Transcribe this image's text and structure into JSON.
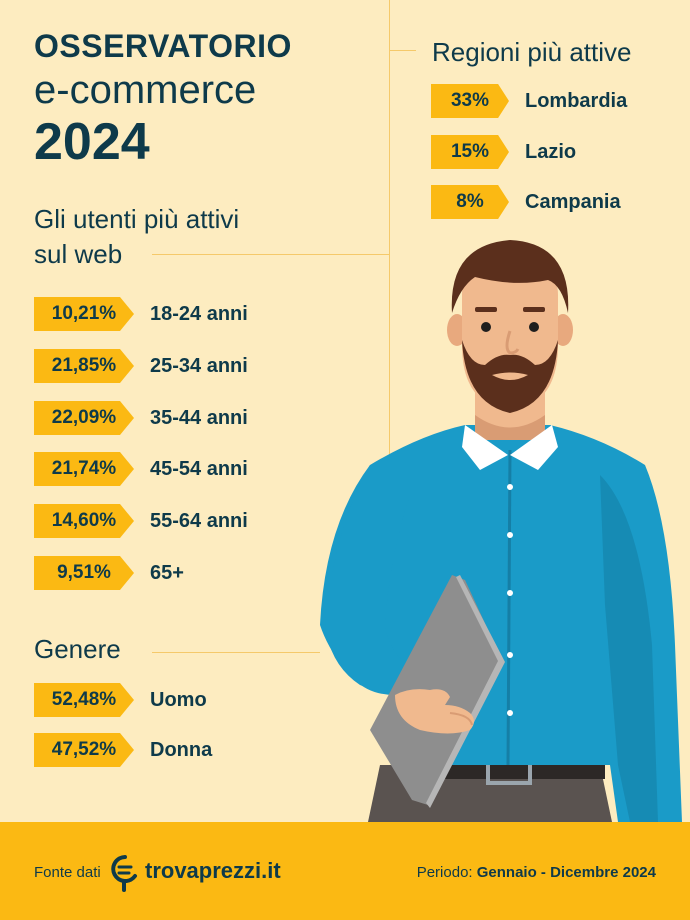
{
  "title": {
    "line1": "OSSERVATORIO",
    "line2": "e-commerce",
    "line3": "2024"
  },
  "regions": {
    "heading": "Regioni più attive",
    "items": [
      {
        "pct": "33%",
        "name": "Lombardia"
      },
      {
        "pct": "15%",
        "name": "Lazio"
      },
      {
        "pct": "8%",
        "name": "Campania"
      }
    ]
  },
  "ages": {
    "heading_line1": "Gli utenti più attivi",
    "heading_line2": "sul web",
    "items": [
      {
        "pct": "10,21%",
        "label": "18-24 anni"
      },
      {
        "pct": "21,85%",
        "label": "25-34 anni"
      },
      {
        "pct": "22,09%",
        "label": "35-44 anni"
      },
      {
        "pct": "21,74%",
        "label": "45-54 anni"
      },
      {
        "pct": "14,60%",
        "label": "55-64 anni"
      },
      {
        "pct": "9,51%",
        "label": "65+"
      }
    ]
  },
  "gender": {
    "heading": "Genere",
    "items": [
      {
        "pct": "52,48%",
        "label": "Uomo"
      },
      {
        "pct": "47,52%",
        "label": "Donna"
      }
    ]
  },
  "footer": {
    "source_label": "Fonte dati",
    "brand": "trovaprezzi.it",
    "period_label": "Periodo:",
    "period_value": "Gennaio - Dicembre 2024"
  },
  "colors": {
    "accent": "#fbb913",
    "text": "#0e3a4a",
    "background": "#fdecc0",
    "shirt": "#1a9bc8"
  },
  "icons": {
    "brand_logo": "trovaprezzi-logo-icon",
    "illustration": "man-with-laptop-illustration"
  }
}
